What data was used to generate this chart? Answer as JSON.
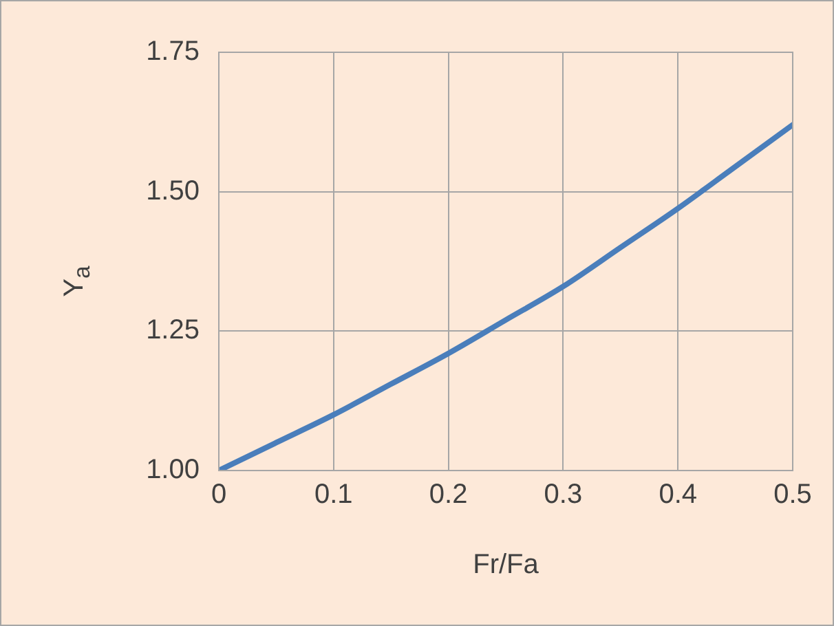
{
  "chart_data": {
    "type": "line",
    "xlabel": "Fr/Fa",
    "ylabel": "Y$_{a}$",
    "x": [
      0,
      0.05,
      0.1,
      0.15,
      0.2,
      0.25,
      0.3,
      0.35,
      0.4,
      0.45,
      0.5
    ],
    "series": [
      {
        "color": "#4a7ebb",
        "values": [
          1.0,
          1.05,
          1.1,
          1.155,
          1.21,
          1.27,
          1.33,
          1.4,
          1.47,
          1.545,
          1.62
        ]
      }
    ],
    "xlim": [
      0,
      0.5
    ],
    "xticks": [
      0,
      0.1,
      0.2,
      0.3,
      0.4,
      0.5
    ],
    "ylim": [
      1.0,
      1.75
    ],
    "yticks": [
      {
        "value": 1.0,
        "label": "1.00"
      },
      {
        "value": 1.25,
        "label": "1.25"
      },
      {
        "value": 1.5,
        "label": "1.50"
      },
      {
        "value": 1.75,
        "label": "1.75"
      }
    ],
    "grid": true,
    "line_style": "solid"
  }
}
